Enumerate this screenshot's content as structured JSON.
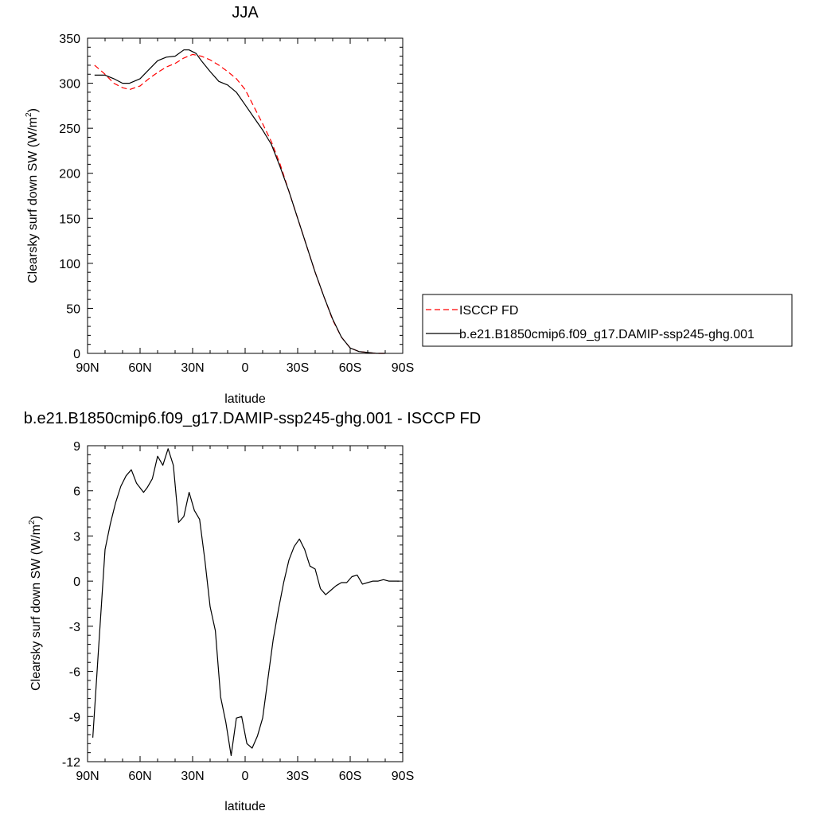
{
  "chart_data": [
    {
      "type": "line",
      "title": "JJA",
      "xlabel": "latitude",
      "ylabel": "Clearsky surf down SW (W/m",
      "ylabel_sup": "2",
      "ylabel_close": ")",
      "xlim": [
        90,
        -90
      ],
      "ylim": [
        0,
        350
      ],
      "x_ticks": [
        90,
        60,
        30,
        0,
        -30,
        -60,
        -90
      ],
      "x_tick_labels": [
        "90N",
        "60N",
        "30N",
        "0",
        "30S",
        "60S",
        "90S"
      ],
      "y_ticks": [
        0,
        50,
        100,
        150,
        200,
        250,
        300,
        350
      ],
      "y_tick_labels": [
        "0",
        "50",
        "100",
        "150",
        "200",
        "250",
        "300",
        "350"
      ],
      "legend": "right",
      "series": [
        {
          "name": "ISCCP FD",
          "color": "#ff0000",
          "dash": "dashed",
          "x": [
            86,
            80,
            75,
            70,
            66,
            60,
            55,
            50,
            45,
            40,
            35,
            30,
            25,
            20,
            15,
            10,
            5,
            0,
            -5,
            -10,
            -15,
            -20,
            -25,
            -30,
            -35,
            -40,
            -45,
            -50,
            -55,
            -60,
            -65,
            -70,
            -75,
            -78,
            -80
          ],
          "y": [
            320,
            310,
            300,
            295,
            293,
            297,
            305,
            312,
            318,
            322,
            328,
            332,
            330,
            326,
            320,
            313,
            305,
            293,
            274,
            255,
            235,
            210,
            180,
            150,
            120,
            90,
            63,
            37,
            18,
            6,
            2,
            1,
            0,
            0,
            0
          ]
        },
        {
          "name": "b.e21.B1850cmip6.f09_g17.DAMIP-ssp245-ghg.001",
          "color": "#000000",
          "dash": "solid",
          "x": [
            86,
            80,
            75,
            70,
            66,
            60,
            55,
            50,
            45,
            40,
            35,
            32,
            28,
            25,
            20,
            15,
            10,
            5,
            0,
            -5,
            -10,
            -15,
            -20,
            -25,
            -30,
            -35,
            -40,
            -45,
            -50,
            -55,
            -60,
            -65,
            -70,
            -75,
            -78,
            -80
          ],
          "y": [
            309,
            309,
            305,
            300,
            300,
            305,
            315,
            325,
            329,
            330,
            337,
            337,
            333,
            325,
            313,
            302,
            298,
            290,
            276,
            262,
            248,
            232,
            207,
            180,
            150,
            120,
            90,
            63,
            38,
            18,
            6,
            2,
            1,
            0,
            0,
            0
          ]
        }
      ]
    },
    {
      "type": "line",
      "title": "b.e21.B1850cmip6.f09_g17.DAMIP-ssp245-ghg.001 - ISCCP FD",
      "xlabel": "latitude",
      "ylabel": "Clearsky surf down SW (W/m",
      "ylabel_sup": "2",
      "ylabel_close": ")",
      "xlim": [
        90,
        -90
      ],
      "ylim": [
        -12,
        9
      ],
      "x_ticks": [
        90,
        60,
        30,
        0,
        -30,
        -60,
        -90
      ],
      "x_tick_labels": [
        "90N",
        "60N",
        "30N",
        "0",
        "30S",
        "60S",
        "90S"
      ],
      "y_ticks": [
        -12,
        -9,
        -6,
        -3,
        0,
        3,
        6,
        9
      ],
      "y_tick_labels": [
        "-12",
        "-9",
        "-6",
        "-3",
        "0",
        "3",
        "6",
        "9"
      ],
      "series": [
        {
          "color": "#000000",
          "dash": "solid",
          "x": [
            87,
            84,
            80,
            77,
            74,
            71,
            68,
            65,
            62,
            58,
            56,
            53,
            50,
            47,
            44,
            41,
            38,
            35,
            32,
            29,
            26,
            23,
            20,
            17,
            14,
            11,
            8,
            5,
            2,
            -1,
            -4,
            -7,
            -10,
            -13,
            -16,
            -19,
            -22,
            -25,
            -28,
            -31,
            -34,
            -37,
            -40,
            -43,
            -46,
            -49,
            -52,
            -55,
            -58,
            -61,
            -64,
            -67,
            -70,
            -73,
            -76,
            -79,
            -82,
            -85,
            -88
          ],
          "y": [
            -10.4,
            -5.0,
            2.1,
            3.8,
            5.2,
            6.3,
            7.0,
            7.4,
            6.5,
            5.9,
            6.2,
            6.8,
            8.3,
            7.7,
            8.8,
            7.7,
            3.9,
            4.3,
            5.9,
            4.7,
            4.1,
            1.4,
            -1.7,
            -3.3,
            -7.7,
            -9.4,
            -11.6,
            -9.1,
            -9.0,
            -10.8,
            -11.1,
            -10.3,
            -9.1,
            -6.5,
            -3.9,
            -1.9,
            -0.1,
            1.4,
            2.3,
            2.8,
            2.1,
            1.0,
            0.8,
            -0.5,
            -0.9,
            -0.6,
            -0.3,
            -0.1,
            -0.1,
            0.3,
            0.4,
            -0.2,
            -0.1,
            0.0,
            0.0,
            0.1,
            0.0,
            0.0,
            0.0
          ]
        }
      ]
    }
  ]
}
